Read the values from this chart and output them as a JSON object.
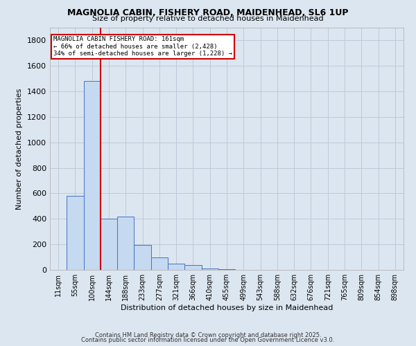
{
  "title1": "MAGNOLIA CABIN, FISHERY ROAD, MAIDENHEAD, SL6 1UP",
  "title2": "Size of property relative to detached houses in Maidenhead",
  "xlabel": "Distribution of detached houses by size in Maidenhead",
  "ylabel": "Number of detached properties",
  "categories": [
    "11sqm",
    "55sqm",
    "100sqm",
    "144sqm",
    "188sqm",
    "233sqm",
    "277sqm",
    "321sqm",
    "366sqm",
    "410sqm",
    "455sqm",
    "499sqm",
    "543sqm",
    "588sqm",
    "632sqm",
    "676sqm",
    "721sqm",
    "765sqm",
    "809sqm",
    "854sqm",
    "898sqm"
  ],
  "values": [
    2,
    580,
    1480,
    400,
    420,
    195,
    100,
    50,
    40,
    10,
    4,
    2,
    1,
    1,
    1,
    1,
    1,
    0,
    0,
    0,
    2
  ],
  "bar_color": "#c5d9f1",
  "bar_edge_color": "#4472c4",
  "red_line_label": "MAGNOLIA CABIN FISHERY ROAD: 161sqm",
  "annotation_line2": "← 66% of detached houses are smaller (2,428)",
  "annotation_line3": "34% of semi-detached houses are larger (1,228) →",
  "annotation_box_color": "#ffffff",
  "annotation_border_color": "#cc0000",
  "vline_color": "#cc0000",
  "ylim": [
    0,
    1900
  ],
  "yticks": [
    0,
    200,
    400,
    600,
    800,
    1000,
    1200,
    1400,
    1600,
    1800
  ],
  "grid_color": "#c0c8d8",
  "bg_color": "#dce6f0",
  "footnote1": "Contains HM Land Registry data © Crown copyright and database right 2025.",
  "footnote2": "Contains public sector information licensed under the Open Government Licence v3.0."
}
